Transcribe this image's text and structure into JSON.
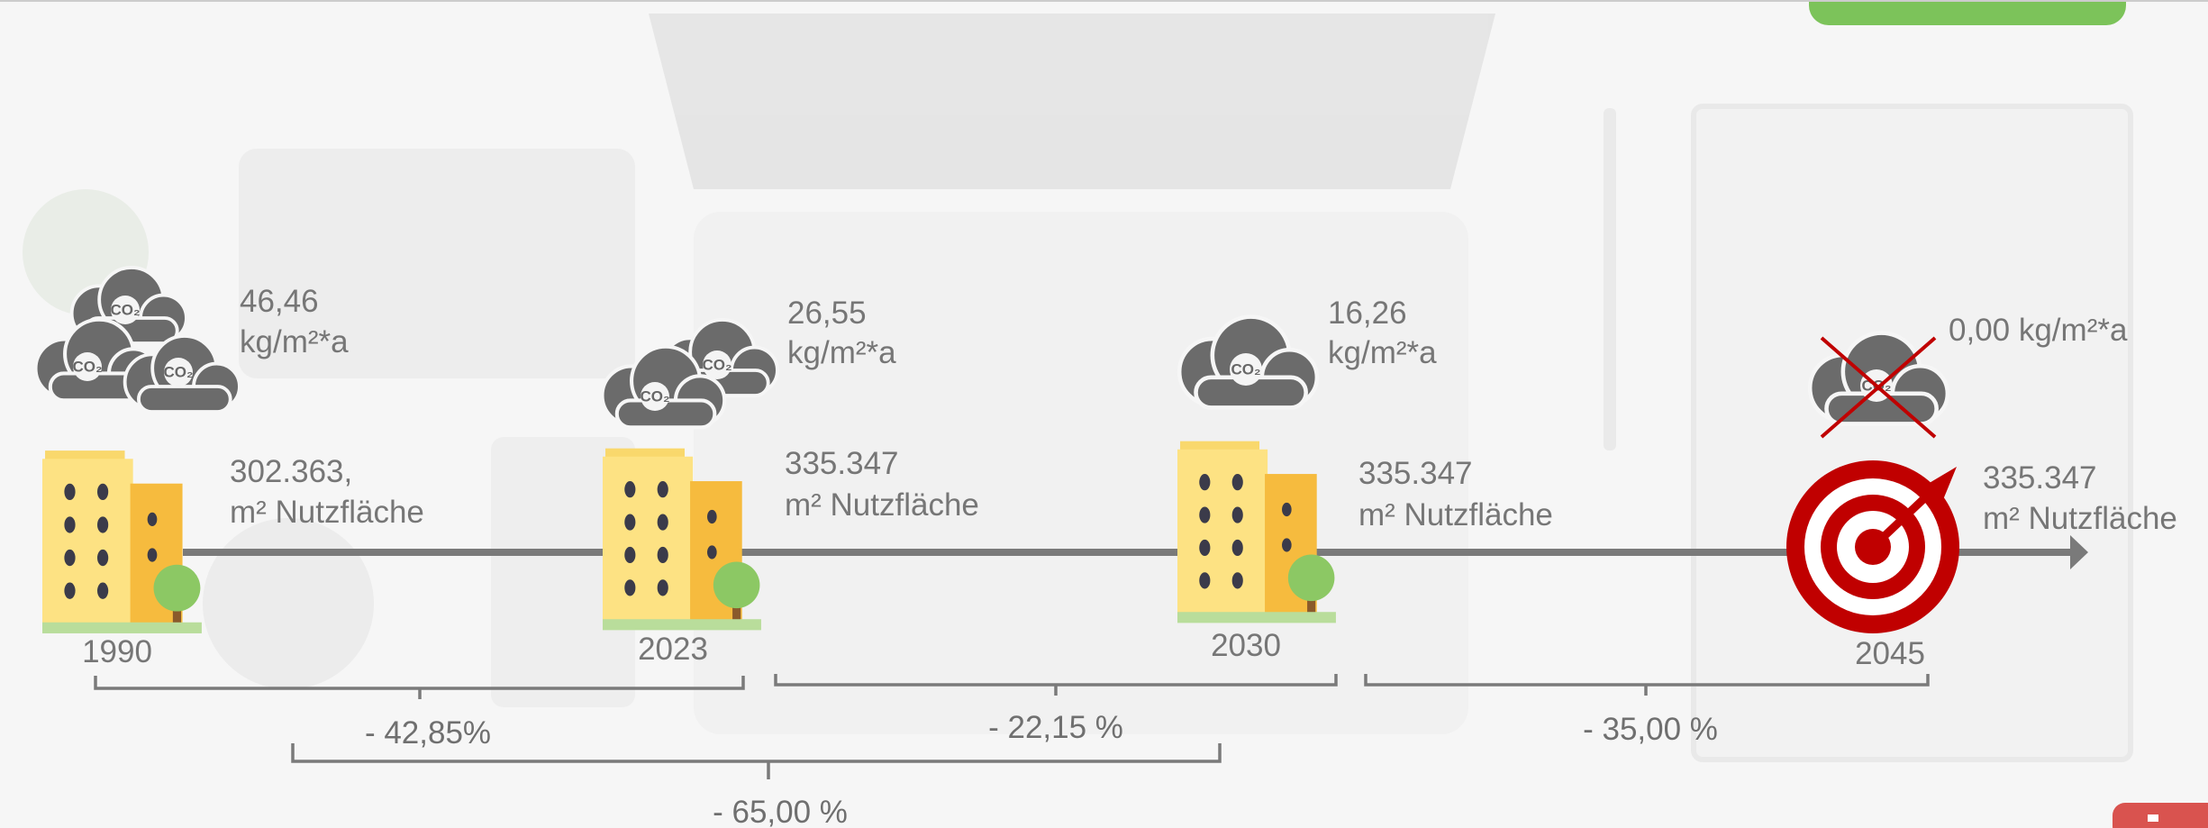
{
  "co2_label": "CO₂",
  "milestones": [
    {
      "year": "1990",
      "emission": [
        "46,46",
        "kg/m²*a"
      ],
      "area": [
        "302.363,",
        "m² Nutzfläche"
      ]
    },
    {
      "year": "2023",
      "emission": [
        "26,55",
        "kg/m²*a"
      ],
      "area": [
        "335.347",
        "m² Nutzfläche"
      ]
    },
    {
      "year": "2030",
      "emission": [
        "16,26",
        "kg/m²*a"
      ],
      "area": [
        "335.347",
        "m² Nutzfläche"
      ]
    },
    {
      "year": "2045",
      "emission": [
        "0,00 kg/m²*a"
      ],
      "area": [
        "335.347",
        "m² Nutzfläche"
      ]
    }
  ],
  "reductions": [
    "- 42,85%",
    "- 22,15 %",
    "- 35,00 %",
    "- 65,00 %"
  ]
}
